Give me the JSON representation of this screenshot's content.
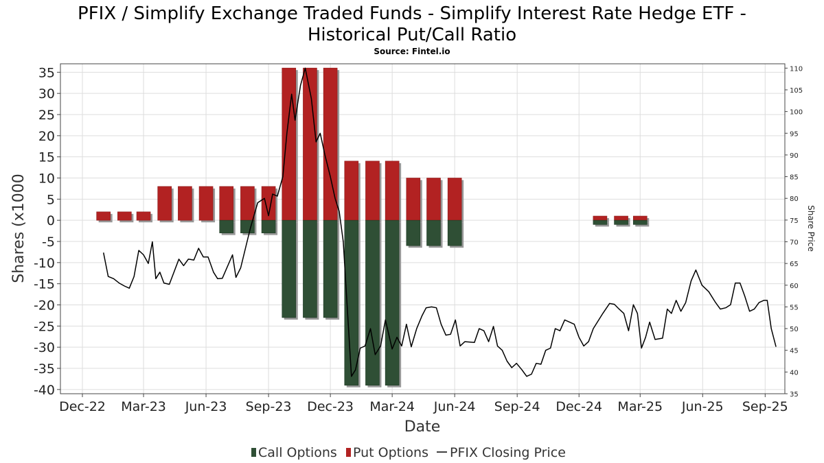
{
  "chart_data": {
    "type": "bar",
    "title_line1": "PFIX / Simplify Exchange Traded Funds - Simplify Interest Rate Hedge ETF -",
    "title_line2": "Historical Put/Call Ratio",
    "subtitle": "Source: Fintel.io",
    "xlabel": "Date",
    "ylabel": "Shares (x1000",
    "y2label": "Share Price",
    "ylim": [
      -41,
      37
    ],
    "y2lim": [
      35,
      111
    ],
    "xlim": [
      "2022-12-01",
      "2025-09-30"
    ],
    "grid": true,
    "legend_position": "bottom-center",
    "colors": {
      "call": "#2f4f35",
      "put": "#b22222",
      "price": "#000000",
      "shadow": "#999999"
    },
    "yticks": [
      35,
      30,
      25,
      20,
      15,
      10,
      5,
      0,
      -5,
      -10,
      -15,
      -20,
      -25,
      -30,
      -35,
      -40
    ],
    "y2ticks": [
      110,
      105,
      100,
      95,
      90,
      85,
      80,
      75,
      70,
      65,
      60,
      55,
      50,
      45,
      40,
      35
    ],
    "xticks": [
      {
        "date": "2022-12-01",
        "label": "Dec-22"
      },
      {
        "date": "2023-03-01",
        "label": "Mar-23"
      },
      {
        "date": "2023-06-01",
        "label": "Jun-23"
      },
      {
        "date": "2023-09-01",
        "label": "Sep-23"
      },
      {
        "date": "2023-12-01",
        "label": "Dec-23"
      },
      {
        "date": "2024-03-01",
        "label": "Mar-24"
      },
      {
        "date": "2024-06-01",
        "label": "Jun-24"
      },
      {
        "date": "2024-09-01",
        "label": "Sep-24"
      },
      {
        "date": "2024-12-01",
        "label": "Dec-24"
      },
      {
        "date": "2025-03-01",
        "label": "Mar-25"
      },
      {
        "date": "2025-06-01",
        "label": "Jun-25"
      },
      {
        "date": "2025-09-01",
        "label": "Sep-25"
      }
    ],
    "bars": [
      {
        "date": "2023-01-01",
        "put": 2,
        "call": 0
      },
      {
        "date": "2023-02-01",
        "put": 2,
        "call": 0
      },
      {
        "date": "2023-03-01",
        "put": 2,
        "call": 0
      },
      {
        "date": "2023-04-01",
        "put": 8,
        "call": 0
      },
      {
        "date": "2023-05-01",
        "put": 8,
        "call": 0
      },
      {
        "date": "2023-06-01",
        "put": 8,
        "call": 0
      },
      {
        "date": "2023-07-01",
        "put": 8,
        "call": -3
      },
      {
        "date": "2023-08-01",
        "put": 8,
        "call": -3
      },
      {
        "date": "2023-09-01",
        "put": 8,
        "call": -3
      },
      {
        "date": "2023-10-01",
        "put": 36,
        "call": -23
      },
      {
        "date": "2023-11-01",
        "put": 36,
        "call": -23
      },
      {
        "date": "2023-12-01",
        "put": 36,
        "call": -23
      },
      {
        "date": "2024-01-01",
        "put": 14,
        "call": -39
      },
      {
        "date": "2024-02-01",
        "put": 14,
        "call": -39
      },
      {
        "date": "2024-03-01",
        "put": 14,
        "call": -39
      },
      {
        "date": "2024-04-01",
        "put": 10,
        "call": -6
      },
      {
        "date": "2024-05-01",
        "put": 10,
        "call": -6
      },
      {
        "date": "2024-06-01",
        "put": 10,
        "call": -6
      },
      {
        "date": "2025-01-01",
        "put": 1,
        "call": -1
      },
      {
        "date": "2025-02-01",
        "put": 1,
        "call": -1
      },
      {
        "date": "2025-03-01",
        "put": 1,
        "call": -1
      }
    ],
    "series": [
      {
        "name": "Call Options"
      },
      {
        "name": "Put Options"
      },
      {
        "name": "PFIX Closing Price"
      }
    ],
    "price": [
      [
        "2023-01-01",
        67.5
      ],
      [
        "2023-01-08",
        62
      ],
      [
        "2023-01-16",
        61.5
      ],
      [
        "2023-01-24",
        60.5
      ],
      [
        "2023-02-01",
        59.8
      ],
      [
        "2023-02-08",
        59.3
      ],
      [
        "2023-02-15",
        62
      ],
      [
        "2023-02-22",
        68
      ],
      [
        "2023-03-01",
        67
      ],
      [
        "2023-03-08",
        65
      ],
      [
        "2023-03-14",
        70
      ],
      [
        "2023-03-19",
        61.5
      ],
      [
        "2023-03-25",
        63
      ],
      [
        "2023-03-31",
        60.5
      ],
      [
        "2023-04-08",
        60.2
      ],
      [
        "2023-04-22",
        66
      ],
      [
        "2023-04-29",
        64.5
      ],
      [
        "2023-05-06",
        66
      ],
      [
        "2023-05-14",
        65.8
      ],
      [
        "2023-05-21",
        68.5
      ],
      [
        "2023-05-28",
        66.5
      ],
      [
        "2023-06-04",
        66.5
      ],
      [
        "2023-06-12",
        63
      ],
      [
        "2023-06-18",
        61.5
      ],
      [
        "2023-06-25",
        61.6
      ],
      [
        "2023-07-10",
        67
      ],
      [
        "2023-07-15",
        61.8
      ],
      [
        "2023-07-22",
        64
      ],
      [
        "2023-08-05",
        73
      ],
      [
        "2023-08-16",
        79
      ],
      [
        "2023-08-26",
        80
      ],
      [
        "2023-09-01",
        76
      ],
      [
        "2023-09-07",
        81
      ],
      [
        "2023-09-14",
        80.5
      ],
      [
        "2023-09-22",
        85
      ],
      [
        "2023-09-28",
        95
      ],
      [
        "2023-10-05",
        104
      ],
      [
        "2023-10-10",
        98
      ],
      [
        "2023-10-18",
        106
      ],
      [
        "2023-10-25",
        110
      ],
      [
        "2023-11-03",
        103
      ],
      [
        "2023-11-10",
        93
      ],
      [
        "2023-11-16",
        95
      ],
      [
        "2023-11-23",
        90
      ],
      [
        "2023-12-01",
        85
      ],
      [
        "2023-12-08",
        80
      ],
      [
        "2023-12-14",
        77
      ],
      [
        "2023-12-20",
        70
      ],
      [
        "2024-01-01",
        39
      ],
      [
        "2024-01-07",
        40.5
      ],
      [
        "2024-01-14",
        45.5
      ],
      [
        "2024-01-21",
        46
      ],
      [
        "2024-01-29",
        50
      ],
      [
        "2024-02-05",
        44
      ],
      [
        "2024-02-13",
        46
      ],
      [
        "2024-02-20",
        52
      ],
      [
        "2024-03-01",
        45.3
      ],
      [
        "2024-03-08",
        48
      ],
      [
        "2024-03-15",
        46
      ],
      [
        "2024-03-22",
        51
      ],
      [
        "2024-03-29",
        45.8
      ],
      [
        "2024-04-06",
        50
      ],
      [
        "2024-04-14",
        53
      ],
      [
        "2024-04-20",
        54.8
      ],
      [
        "2024-04-28",
        55
      ],
      [
        "2024-05-05",
        54.8
      ],
      [
        "2024-05-12",
        51
      ],
      [
        "2024-05-19",
        48.5
      ],
      [
        "2024-05-26",
        48.7
      ],
      [
        "2024-06-02",
        52
      ],
      [
        "2024-06-09",
        46
      ],
      [
        "2024-06-16",
        47
      ],
      [
        "2024-06-30",
        46.8
      ],
      [
        "2024-07-07",
        50
      ],
      [
        "2024-07-14",
        49.5
      ],
      [
        "2024-07-21",
        47
      ],
      [
        "2024-07-28",
        50.5
      ],
      [
        "2024-08-03",
        46
      ],
      [
        "2024-08-10",
        45
      ],
      [
        "2024-08-17",
        42.5
      ],
      [
        "2024-08-24",
        41
      ],
      [
        "2024-08-31",
        42
      ],
      [
        "2024-09-08",
        40.5
      ],
      [
        "2024-09-15",
        39
      ],
      [
        "2024-09-22",
        39.5
      ],
      [
        "2024-09-29",
        42
      ],
      [
        "2024-10-06",
        41.8
      ],
      [
        "2024-10-13",
        45
      ],
      [
        "2024-10-20",
        45.5
      ],
      [
        "2024-10-27",
        50
      ],
      [
        "2024-11-03",
        49.5
      ],
      [
        "2024-11-10",
        52
      ],
      [
        "2024-11-17",
        51.5
      ],
      [
        "2024-11-24",
        51
      ],
      [
        "2024-12-01",
        48
      ],
      [
        "2024-12-08",
        46
      ],
      [
        "2024-12-15",
        47
      ],
      [
        "2024-12-22",
        50
      ],
      [
        "2025-01-05",
        53.5
      ],
      [
        "2025-01-15",
        55.8
      ],
      [
        "2025-01-22",
        55.6
      ],
      [
        "2025-01-29",
        54.5
      ],
      [
        "2025-02-05",
        53.5
      ],
      [
        "2025-02-12",
        49.5
      ],
      [
        "2025-02-19",
        55.5
      ],
      [
        "2025-02-25",
        53.5
      ],
      [
        "2025-03-03",
        45.5
      ],
      [
        "2025-03-09",
        48
      ],
      [
        "2025-03-15",
        51.5
      ],
      [
        "2025-03-23",
        47.5
      ],
      [
        "2025-04-03",
        47.8
      ],
      [
        "2025-04-10",
        54.5
      ],
      [
        "2025-04-16",
        53.5
      ],
      [
        "2025-04-23",
        56.5
      ],
      [
        "2025-04-30",
        54
      ],
      [
        "2025-05-07",
        56
      ],
      [
        "2025-05-15",
        61
      ],
      [
        "2025-05-22",
        63.5
      ],
      [
        "2025-05-31",
        60
      ],
      [
        "2025-06-10",
        58.5
      ],
      [
        "2025-06-20",
        56
      ],
      [
        "2025-06-27",
        54.5
      ],
      [
        "2025-07-05",
        54.8
      ],
      [
        "2025-07-12",
        55.5
      ],
      [
        "2025-07-19",
        60.5
      ],
      [
        "2025-07-26",
        60.5
      ],
      [
        "2025-08-02",
        57.5
      ],
      [
        "2025-08-09",
        54
      ],
      [
        "2025-08-16",
        54.5
      ],
      [
        "2025-08-23",
        56
      ],
      [
        "2025-08-30",
        56.5
      ],
      [
        "2025-09-04",
        56.5
      ],
      [
        "2025-09-10",
        50
      ],
      [
        "2025-09-17",
        45.8
      ]
    ]
  }
}
